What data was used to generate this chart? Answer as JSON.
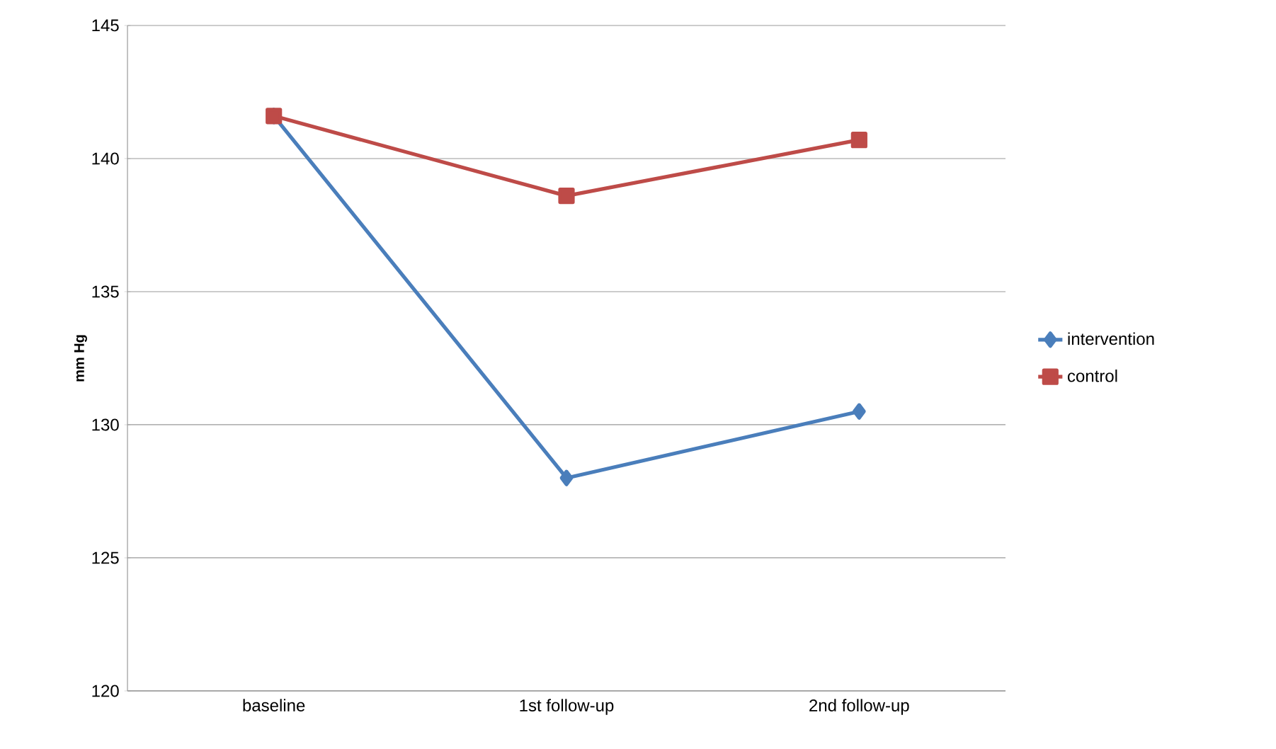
{
  "chart_data": {
    "type": "line",
    "ylabel": "mm Hg",
    "categories": [
      "baseline",
      "1st follow-up",
      "2nd follow-up"
    ],
    "series": [
      {
        "name": "intervention",
        "color": "#4a7ebb",
        "marker": "diamond",
        "values": [
          141.6,
          128.0,
          130.5
        ]
      },
      {
        "name": "control",
        "color": "#be4b48",
        "marker": "square",
        "values": [
          141.6,
          138.6,
          140.7
        ]
      }
    ],
    "ylim": [
      120,
      145
    ],
    "yticks": [
      120,
      125,
      130,
      135,
      140,
      145
    ],
    "grid": "y",
    "legend": "right",
    "line_style": "solid"
  }
}
